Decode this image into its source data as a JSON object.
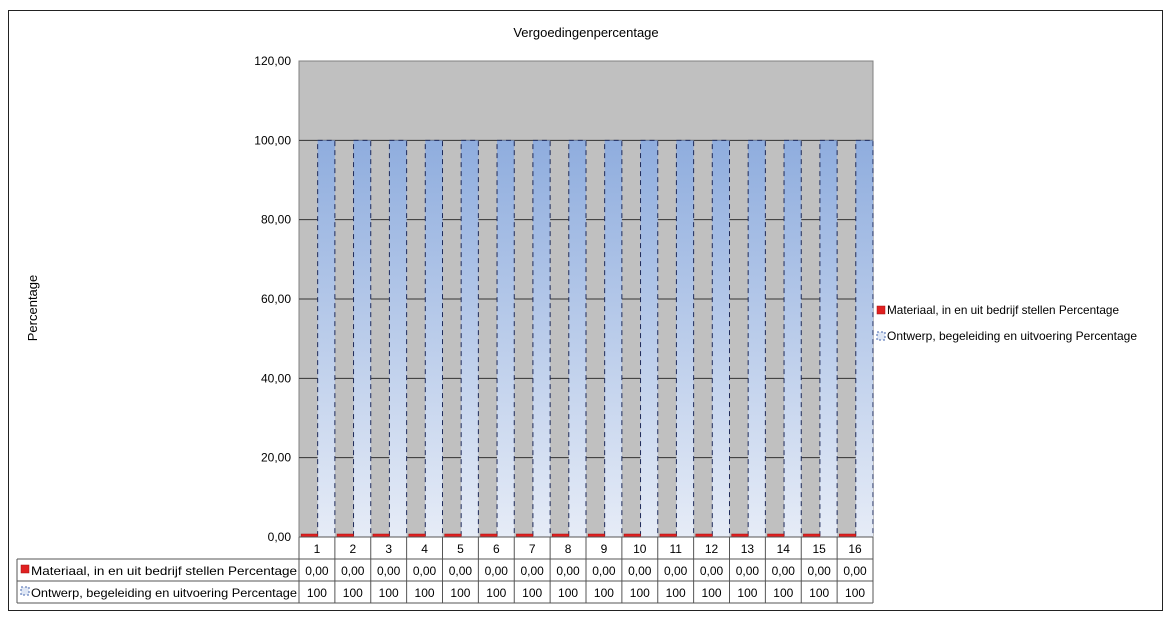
{
  "chart_data": {
    "type": "bar",
    "title": "Vergoedingenpercentage",
    "ylabel": "Percentage",
    "xlabel": "",
    "ylim": [
      0,
      120
    ],
    "yticks": [
      "0,00",
      "20,00",
      "40,00",
      "60,00",
      "80,00",
      "100,00",
      "120,00"
    ],
    "categories": [
      "1",
      "2",
      "3",
      "4",
      "5",
      "6",
      "7",
      "8",
      "9",
      "10",
      "11",
      "12",
      "13",
      "14",
      "15",
      "16"
    ],
    "grid": true,
    "legend_position": "right",
    "series": [
      {
        "name": "Materiaal, in en uit bedrijf stellen Percentage",
        "color": "#e02020",
        "values": [
          0,
          0,
          0,
          0,
          0,
          0,
          0,
          0,
          0,
          0,
          0,
          0,
          0,
          0,
          0,
          0
        ],
        "table_values": [
          "0,00",
          "0,00",
          "0,00",
          "0,00",
          "0,00",
          "0,00",
          "0,00",
          "0,00",
          "0,00",
          "0,00",
          "0,00",
          "0,00",
          "0,00",
          "0,00",
          "0,00",
          "0,00"
        ]
      },
      {
        "name": "Ontwerp, begeleiding en uitvoering Percentage",
        "color": "#8aa8dc",
        "values": [
          100,
          100,
          100,
          100,
          100,
          100,
          100,
          100,
          100,
          100,
          100,
          100,
          100,
          100,
          100,
          100
        ],
        "table_values": [
          "100",
          "100",
          "100",
          "100",
          "100",
          "100",
          "100",
          "100",
          "100",
          "100",
          "100",
          "100",
          "100",
          "100",
          "100",
          "100"
        ]
      }
    ]
  }
}
